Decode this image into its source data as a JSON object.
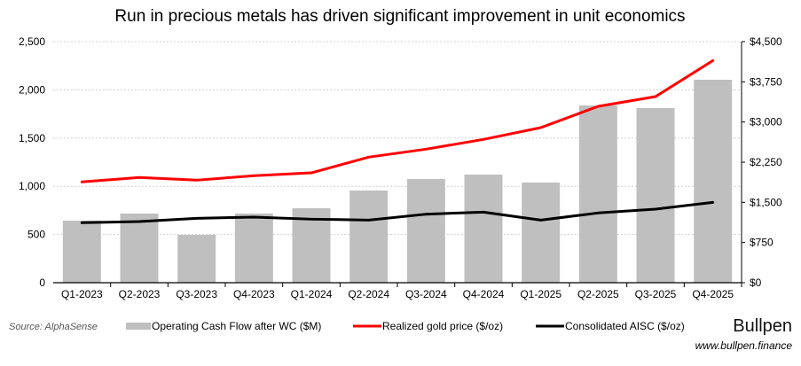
{
  "chart_data": {
    "type": "bar",
    "title": "Run in precious metals has driven significant improvement in unit economics",
    "categories": [
      "Q1-2023",
      "Q2-2023",
      "Q3-2023",
      "Q4-2023",
      "Q1-2024",
      "Q2-2024",
      "Q3-2024",
      "Q4-2024",
      "Q1-2025",
      "Q2-2025",
      "Q3-2025",
      "Q4-2025"
    ],
    "y_left": {
      "range": [
        0,
        2500
      ],
      "ticks": [
        0,
        500,
        1000,
        1500,
        2000,
        2500
      ],
      "tick_labels": [
        "0",
        "500",
        "1,000",
        "1,500",
        "2,000",
        "2,500"
      ]
    },
    "y_right": {
      "range": [
        0,
        4500
      ],
      "ticks": [
        0,
        750,
        1500,
        2250,
        3000,
        3750,
        4500
      ],
      "tick_labels": [
        "$0",
        "$750",
        "$1,500",
        "$2,250",
        "$3,000",
        "$3,750",
        "$4,500"
      ]
    },
    "grid": true,
    "legend_placement": "bottom",
    "series": [
      {
        "name": "Operating Cash Flow after WC ($M)",
        "kind": "bar",
        "axis": "left",
        "color": "#bfbfbf",
        "values": [
          643,
          717,
          496,
          717,
          772,
          956,
          1075,
          1121,
          1039,
          1838,
          1811,
          2105
        ]
      },
      {
        "name": "Realized gold price ($/oz)",
        "kind": "line",
        "axis": "right",
        "color": "#ff0000",
        "values": [
          1881,
          1964,
          1914,
          1997,
          2051,
          2344,
          2493,
          2675,
          2895,
          3292,
          3474,
          4147
        ]
      },
      {
        "name": "Consolidated AISC ($/oz)",
        "kind": "line",
        "axis": "right",
        "color": "#000000",
        "values": [
          1120,
          1141,
          1202,
          1224,
          1186,
          1169,
          1279,
          1318,
          1169,
          1302,
          1373,
          1500
        ]
      }
    ]
  },
  "footer": {
    "source": "Source: AlphaSense",
    "brand": "Bullpen",
    "website": "www.bullpen.finance"
  }
}
